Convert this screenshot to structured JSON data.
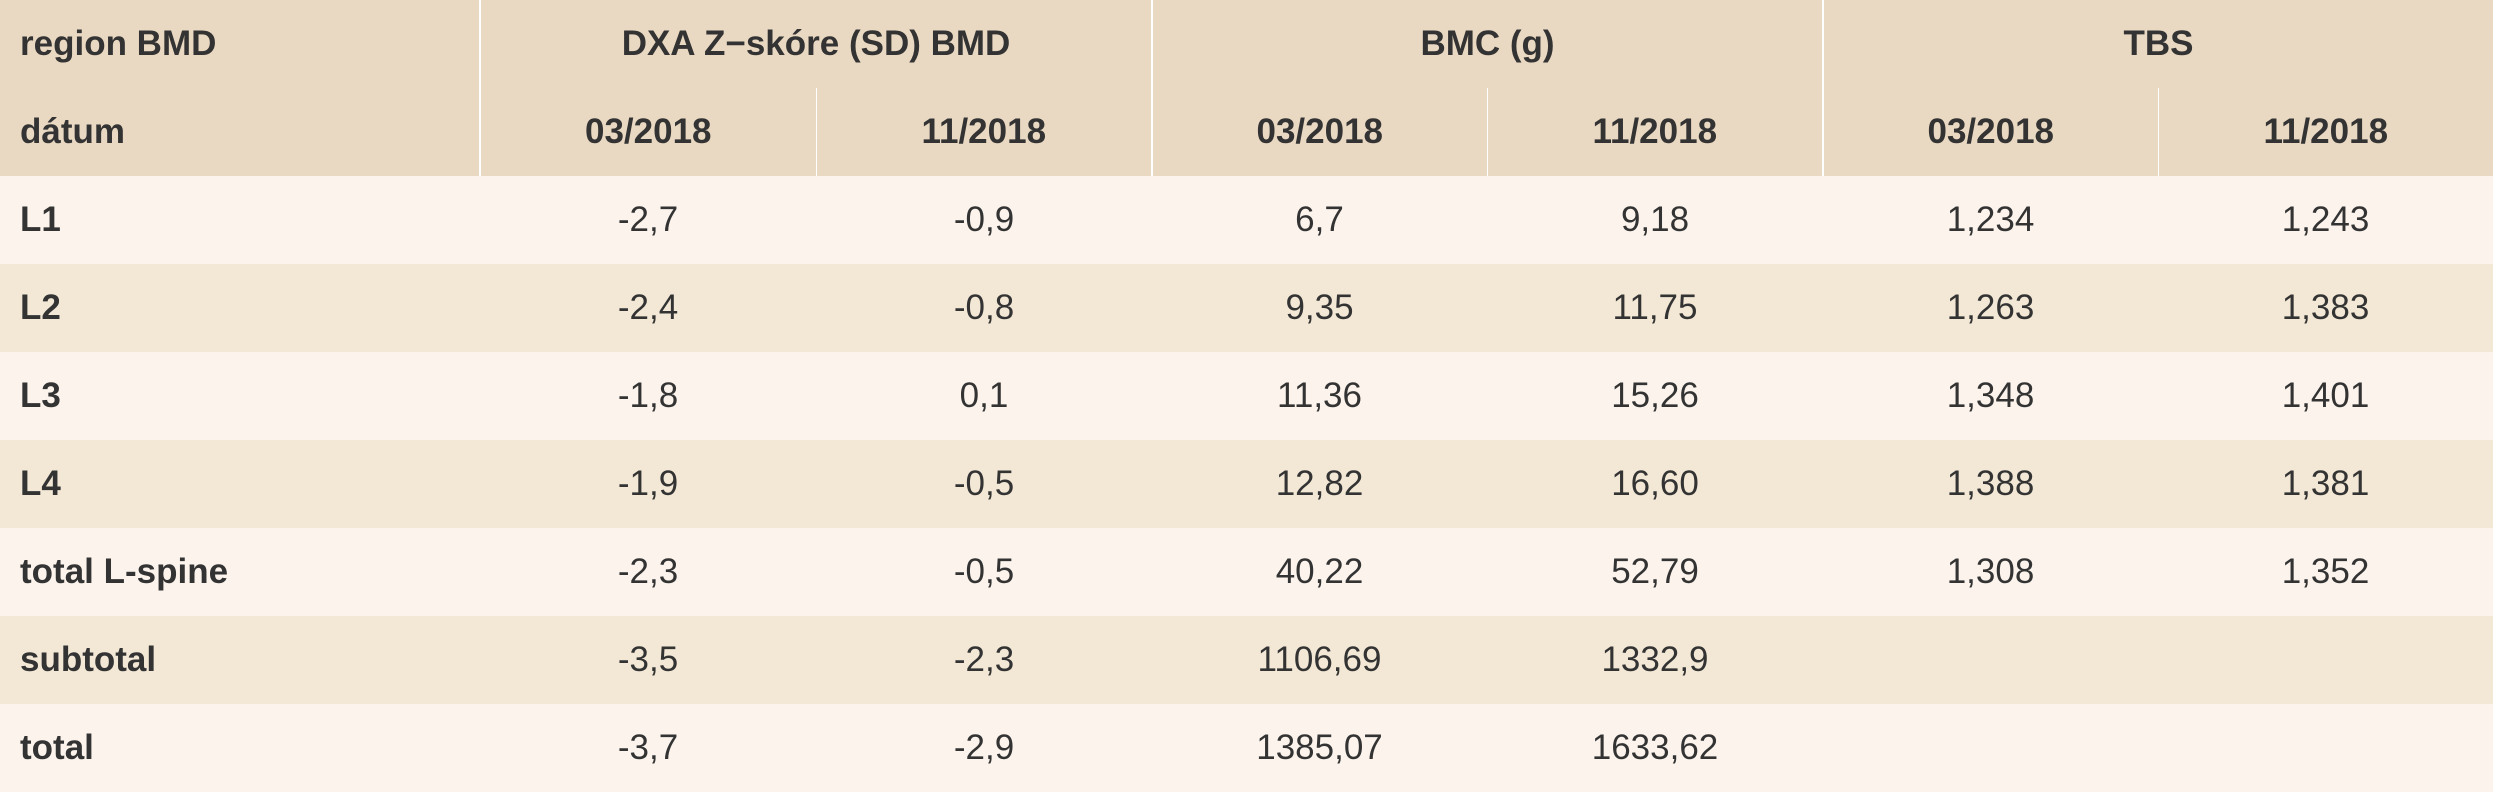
{
  "header": {
    "row1": {
      "label": "region BMD",
      "groups": [
        "DXA Z−skóre (SD) BMD",
        "BMC (g)",
        "TBS"
      ]
    },
    "row2": {
      "label": "dátum",
      "dates": [
        "03/2018",
        "11/2018",
        "03/2018",
        "11/2018",
        "03/2018",
        "11/2018"
      ]
    }
  },
  "rows": [
    {
      "label": "L1",
      "cells": [
        "-2,7",
        "-0,9",
        "6,7",
        "9,18",
        "1,234",
        "1,243"
      ]
    },
    {
      "label": "L2",
      "cells": [
        "-2,4",
        "-0,8",
        "9,35",
        "11,75",
        "1,263",
        "1,383"
      ]
    },
    {
      "label": "L3",
      "cells": [
        "-1,8",
        "0,1",
        "11,36",
        "15,26",
        "1,348",
        "1,401"
      ]
    },
    {
      "label": "L4",
      "cells": [
        "-1,9",
        "-0,5",
        "12,82",
        "16,60",
        "1,388",
        "1,381"
      ]
    },
    {
      "label": "total L-spine",
      "cells": [
        "-2,3",
        "-0,5",
        "40,22",
        "52,79",
        "1,308",
        "1,352"
      ]
    },
    {
      "label": "subtotal",
      "cells": [
        "-3,5",
        "-2,3",
        "1106,69",
        "1332,9",
        "",
        ""
      ]
    },
    {
      "label": "total",
      "cells": [
        "-3,7",
        "-2,9",
        "1385,07",
        "1633,62",
        "",
        ""
      ]
    }
  ]
}
